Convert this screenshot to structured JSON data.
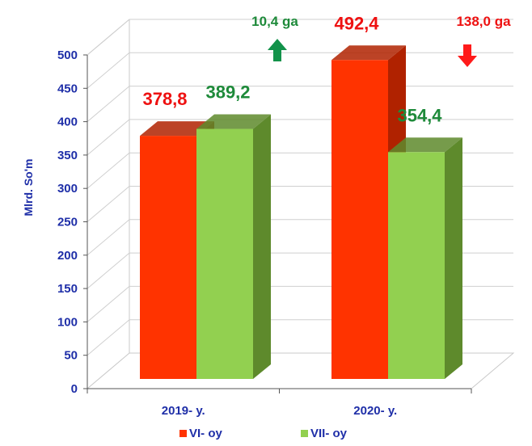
{
  "chart_data": {
    "type": "bar",
    "categories": [
      "2019- y.",
      "2020- y."
    ],
    "series": [
      {
        "name": "VI- oy",
        "values": [
          378.8,
          492.4
        ],
        "labels": [
          "378,8",
          "492,4"
        ],
        "color": "#ff3300",
        "dark": "#b02200",
        "label_color": "#ee1111"
      },
      {
        "name": "VII- oy",
        "values": [
          389.2,
          354.4
        ],
        "labels": [
          "389,2",
          "354,4"
        ],
        "color": "#92d050",
        "dark": "#5e8a2c",
        "label_color": "#1e8a3a"
      }
    ],
    "ylabel": "Mlrd. So'm",
    "ylim": [
      0,
      500
    ],
    "yticks": [
      "0",
      "50",
      "100",
      "150",
      "200",
      "250",
      "300",
      "350",
      "400",
      "450",
      "500"
    ],
    "grid": true,
    "legend_position": "bottom",
    "annotations": [
      {
        "text": "10,4 ga",
        "direction": "up",
        "color": "#1e8a3a",
        "arrow_color": "#12924a"
      },
      {
        "text": "138,0 ga",
        "direction": "down",
        "color": "#ee1111",
        "arrow_color": "#ff1a1a"
      }
    ]
  }
}
